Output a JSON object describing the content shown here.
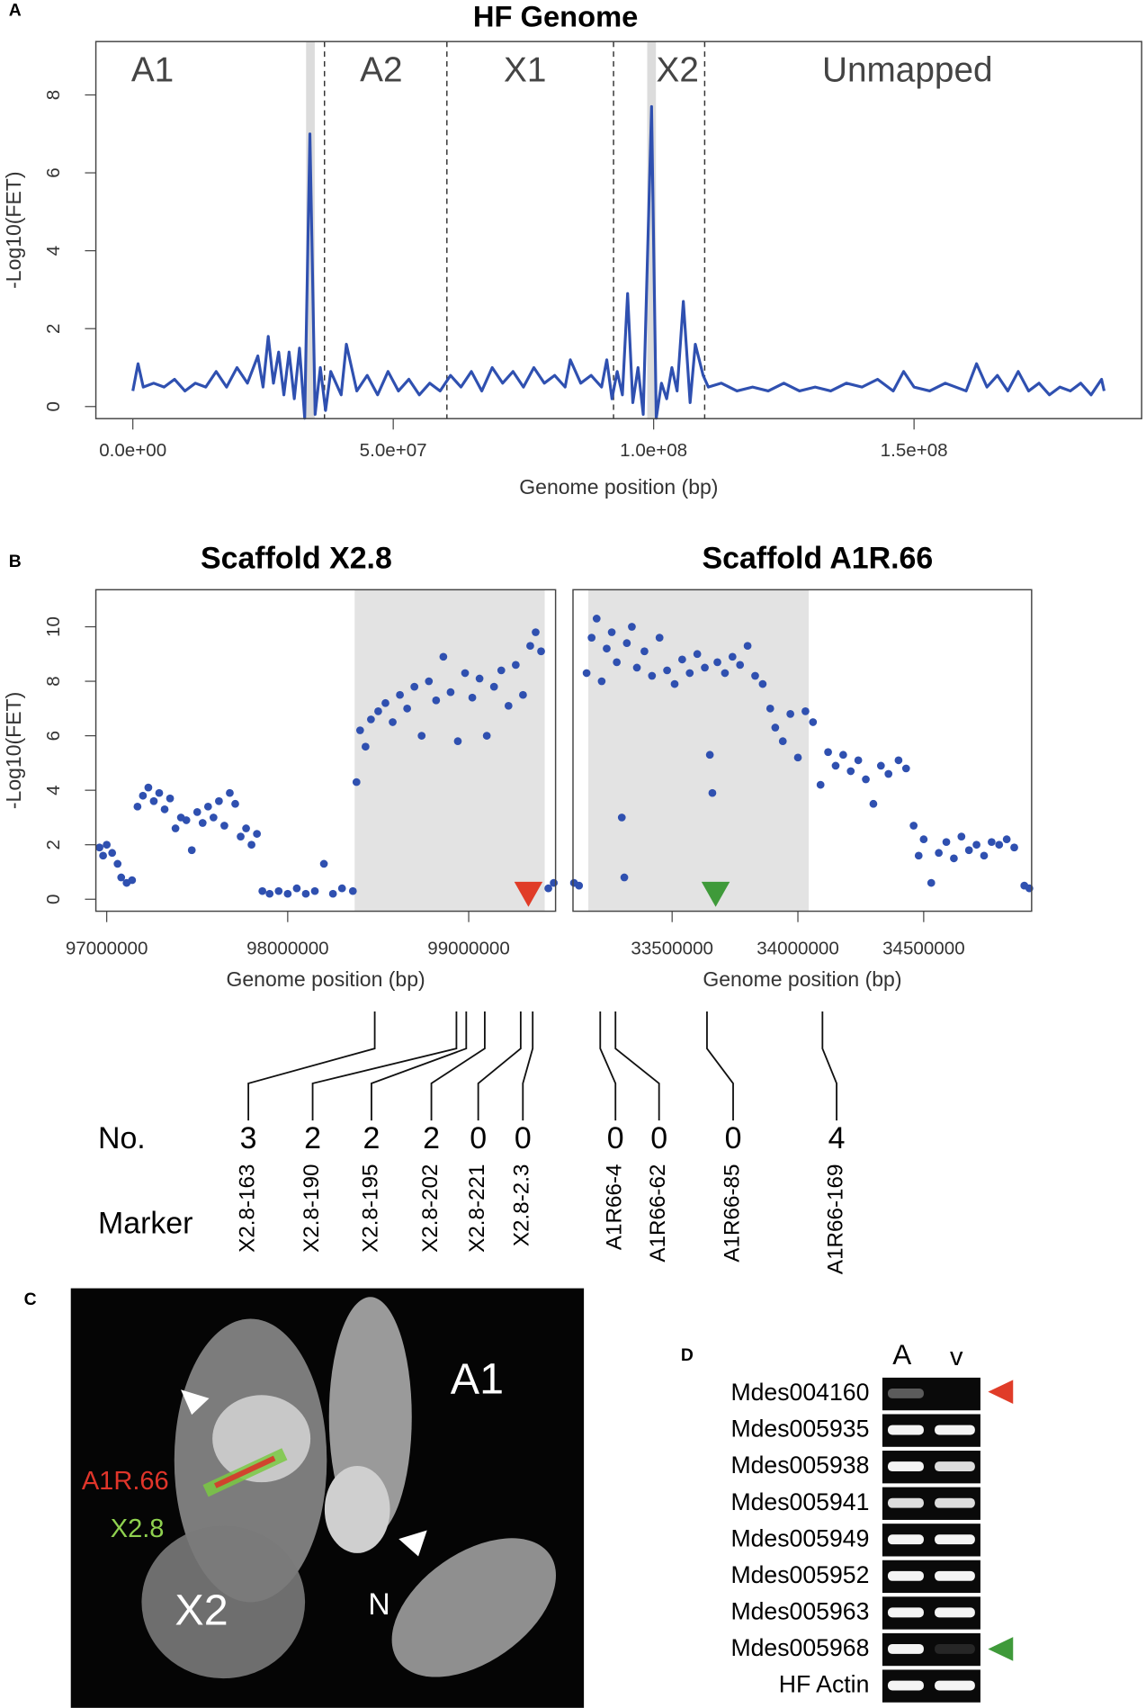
{
  "panel_labels": [
    "A",
    "B",
    "C",
    "D"
  ],
  "chart_data": [
    {
      "type": "line",
      "title": "HF Genome",
      "x_label": "Genome position (bp)",
      "y_label": "-Log10(FET)",
      "x": [
        0,
        1000000,
        2000000,
        4000000,
        6000000,
        8000000,
        10000000,
        12000000,
        14000000,
        16000000,
        18000000,
        20000000,
        22000000,
        24000000,
        25000000,
        26000000,
        27000000,
        28000000,
        29000000,
        30000000,
        31000000,
        32000000,
        33000000,
        34000000,
        35000000,
        36000000,
        37000000,
        38000000,
        40000000,
        41000000,
        43000000,
        45000000,
        47000000,
        49000000,
        51000000,
        53000000,
        55000000,
        57000000,
        59000000,
        61000000,
        63000000,
        65000000,
        67000000,
        69000000,
        71000000,
        73000000,
        75000000,
        77000000,
        79000000,
        81000000,
        83000000,
        84000000,
        86000000,
        88000000,
        90000000,
        91000000,
        92000000,
        93000000,
        94000000,
        95000000,
        96000000,
        97000000,
        98000000,
        99600000,
        100500000,
        101500000,
        102500000,
        103500000,
        104500000,
        105700000,
        107000000,
        108000000,
        109500000,
        110500000,
        113000000,
        116000000,
        119000000,
        122000000,
        125000000,
        128000000,
        131000000,
        134000000,
        137000000,
        140000000,
        143000000,
        146000000,
        148000000,
        150000000,
        153000000,
        156000000,
        160000000,
        162000000,
        164000000,
        166000000,
        168000000,
        170000000,
        172000000,
        174000000,
        176000000,
        178000000,
        180000000,
        182000000,
        184000000,
        186000000,
        186500000
      ],
      "series": [
        {
          "color": "#2f50b0",
          "values": [
            0.4,
            1.1,
            0.5,
            0.6,
            0.5,
            0.7,
            0.4,
            0.6,
            0.5,
            0.9,
            0.5,
            1.0,
            0.6,
            1.3,
            0.5,
            1.8,
            0.6,
            1.4,
            0.3,
            1.4,
            0.2,
            1.5,
            -0.3,
            7.0,
            -0.2,
            1.0,
            -0.1,
            0.9,
            0.3,
            1.6,
            0.4,
            0.8,
            0.3,
            0.9,
            0.4,
            0.7,
            0.3,
            0.6,
            0.4,
            0.8,
            0.5,
            0.9,
            0.4,
            1.0,
            0.6,
            0.9,
            0.5,
            1.0,
            0.6,
            0.8,
            0.5,
            1.2,
            0.6,
            0.8,
            0.5,
            1.2,
            0.2,
            0.9,
            0.3,
            2.9,
            0.1,
            1.0,
            -0.2,
            7.7,
            -0.3,
            0.6,
            0.2,
            1.0,
            0.4,
            2.7,
            0.1,
            1.6,
            0.8,
            0.5,
            0.6,
            0.4,
            0.5,
            0.4,
            0.6,
            0.4,
            0.5,
            0.4,
            0.6,
            0.5,
            0.7,
            0.4,
            0.9,
            0.5,
            0.4,
            0.6,
            0.4,
            1.1,
            0.5,
            0.8,
            0.4,
            0.9,
            0.4,
            0.6,
            0.3,
            0.5,
            0.4,
            0.6,
            0.3,
            0.7,
            0.4
          ]
        }
      ],
      "regions": [
        "A1",
        "A2",
        "X1",
        "X2",
        "Unmapped"
      ],
      "dividers": [
        36800000,
        60300000,
        92300000,
        109800000
      ],
      "highlights": [
        34100000,
        99600000
      ],
      "xlim": [
        -7100000,
        193700000
      ],
      "ylim": [
        -0.31,
        9.37
      ],
      "xticks": [
        {
          "value": 0,
          "label": "0.0e+00"
        },
        {
          "value": 50000000,
          "label": "5.0e+07"
        },
        {
          "value": 100000000,
          "label": "1.0e+08"
        },
        {
          "value": 150000000,
          "label": "1.5e+08"
        }
      ],
      "yticks": [
        0,
        2,
        4,
        6,
        8
      ]
    },
    {
      "type": "scatter",
      "title": "Scaffold X2.8",
      "x_label": "Genome position (bp)",
      "y_label": "-Log10(FET)",
      "color": "#2f50b0",
      "x": [
        96960000,
        96980000,
        97000000,
        97030000,
        97060000,
        97080000,
        97110000,
        97140000,
        97170000,
        97200000,
        97230000,
        97260000,
        97290000,
        97320000,
        97350000,
        97380000,
        97410000,
        97440000,
        97470000,
        97500000,
        97530000,
        97560000,
        97590000,
        97620000,
        97650000,
        97680000,
        97710000,
        97740000,
        97770000,
        97800000,
        97830000,
        97860000,
        97900000,
        97950000,
        98000000,
        98050000,
        98100000,
        98150000,
        98200000,
        98250000,
        98300000,
        98360000,
        98380000,
        98400000,
        98430000,
        98460000,
        98500000,
        98540000,
        98580000,
        98620000,
        98660000,
        98700000,
        98740000,
        98780000,
        98820000,
        98860000,
        98900000,
        98940000,
        98980000,
        99020000,
        99060000,
        99100000,
        99140000,
        99180000,
        99220000,
        99260000,
        99300000,
        99340000,
        99370000,
        99400000,
        99440000,
        99470000
      ],
      "values": [
        1.9,
        1.6,
        2.0,
        1.7,
        1.3,
        0.8,
        0.6,
        0.7,
        3.4,
        3.8,
        4.1,
        3.6,
        3.9,
        3.3,
        3.7,
        2.6,
        3.0,
        2.9,
        1.8,
        3.2,
        2.8,
        3.4,
        3.0,
        3.6,
        2.7,
        3.9,
        3.5,
        2.3,
        2.6,
        2.0,
        2.4,
        0.3,
        0.2,
        0.3,
        0.2,
        0.4,
        0.2,
        0.3,
        1.3,
        0.2,
        0.4,
        0.3,
        4.3,
        6.2,
        5.6,
        6.6,
        6.9,
        7.2,
        6.5,
        7.5,
        7.0,
        7.8,
        6.0,
        8.0,
        7.3,
        8.9,
        7.6,
        5.8,
        8.3,
        7.4,
        8.1,
        6.0,
        7.8,
        8.4,
        7.1,
        8.6,
        7.5,
        9.3,
        9.8,
        9.1,
        0.4,
        0.6
      ],
      "shaded": [
        98370000,
        99420000
      ],
      "pointer": {
        "x": 99330000,
        "color": "#e03c28"
      },
      "xlim": [
        96940000,
        99480000
      ],
      "ylim": [
        -0.44,
        11.36
      ],
      "xticks": [
        97000000,
        98000000,
        99000000
      ],
      "yticks": [
        0,
        2,
        4,
        6,
        8,
        10
      ]
    },
    {
      "type": "scatter",
      "title": "Scaffold A1R.66",
      "x_label": "Genome position (bp)",
      "color": "#2f50b0",
      "x": [
        33110000,
        33130000,
        33160000,
        33180000,
        33200000,
        33220000,
        33240000,
        33260000,
        33280000,
        33300000,
        33310000,
        33320000,
        33340000,
        33360000,
        33390000,
        33420000,
        33450000,
        33480000,
        33510000,
        33540000,
        33570000,
        33600000,
        33630000,
        33650000,
        33660000,
        33680000,
        33710000,
        33740000,
        33770000,
        33800000,
        33830000,
        33860000,
        33890000,
        33910000,
        33940000,
        33970000,
        34000000,
        34030000,
        34060000,
        34090000,
        34120000,
        34150000,
        34180000,
        34210000,
        34240000,
        34270000,
        34300000,
        34330000,
        34360000,
        34400000,
        34430000,
        34460000,
        34480000,
        34500000,
        34530000,
        34560000,
        34590000,
        34620000,
        34650000,
        34680000,
        34710000,
        34740000,
        34770000,
        34800000,
        34830000,
        34860000,
        34900000,
        34920000
      ],
      "values": [
        0.6,
        0.5,
        8.3,
        9.6,
        10.3,
        8.0,
        9.2,
        9.8,
        8.7,
        3.0,
        0.8,
        9.4,
        10.0,
        8.5,
        9.1,
        8.2,
        9.6,
        8.4,
        7.9,
        8.8,
        8.3,
        9.0,
        8.5,
        5.3,
        3.9,
        8.7,
        8.3,
        8.9,
        8.6,
        9.3,
        8.2,
        7.9,
        7.0,
        6.3,
        5.8,
        6.8,
        5.2,
        6.9,
        6.5,
        4.2,
        5.4,
        4.9,
        5.3,
        4.7,
        5.1,
        4.4,
        3.5,
        4.9,
        4.6,
        5.1,
        4.8,
        2.7,
        1.6,
        2.2,
        0.6,
        1.7,
        2.1,
        1.5,
        2.3,
        1.8,
        2.0,
        1.6,
        2.1,
        2.0,
        2.2,
        1.9,
        0.5,
        0.4
      ],
      "shaded": [
        33167000,
        34043000
      ],
      "pointer": {
        "x": 33673000,
        "color": "#3f9a3a"
      },
      "xlim": [
        33106000,
        34929000
      ],
      "ylim": [
        -0.44,
        11.36
      ],
      "xticks": [
        33500000,
        34000000,
        34500000
      ]
    }
  ],
  "markers": {
    "count_label": "No.",
    "name_label": "Marker",
    "items": [
      {
        "count": 3,
        "name": "X2.8-163"
      },
      {
        "count": 2,
        "name": "X2.8-190"
      },
      {
        "count": 2,
        "name": "X2.8-195"
      },
      {
        "count": 2,
        "name": "X2.8-202"
      },
      {
        "count": 0,
        "name": "X2.8-221"
      },
      {
        "count": 0,
        "name": "X2.8-2.3"
      },
      {
        "count": 0,
        "name": "A1R66-4"
      },
      {
        "count": 0,
        "name": "A1R66-62"
      },
      {
        "count": 0,
        "name": "A1R66-85"
      },
      {
        "count": 4,
        "name": "A1R66-169"
      }
    ]
  },
  "fish": {
    "probe_red": "A1R.66",
    "probe_green": "X2.8",
    "chromosomes": [
      "A1",
      "X2",
      "N"
    ]
  },
  "gel": {
    "lanes": [
      "A",
      "v"
    ],
    "rows": [
      "Mdes004160",
      "Mdes005935",
      "Mdes005938",
      "Mdes005941",
      "Mdes005949",
      "Mdes005952",
      "Mdes005963",
      "Mdes005968",
      "HF Actin"
    ]
  }
}
